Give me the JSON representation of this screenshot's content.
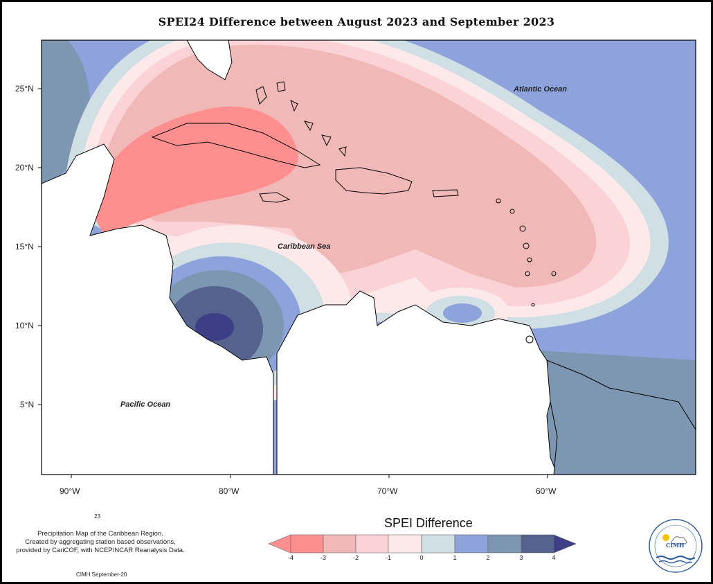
{
  "title": "SPEI24 Difference between August 2023 and September 2023",
  "labels": {
    "atlantic": "Atlantic Ocean",
    "caribbean": "Caribbean Sea",
    "pacific": "Pacific Ocean"
  },
  "lat_axis": [
    "25°N",
    "20°N",
    "15°N",
    "10°N",
    "5°N"
  ],
  "lon_axis": [
    "90°W",
    "80°W",
    "70°W",
    "60°W"
  ],
  "footnote_number": "23",
  "description_lines": [
    "Precipitation Map of the Caribbean Region.",
    "Created by aggregating station based observations,",
    "provided by CariCOF, with NCEP/NCAR Reanalysis Data."
  ],
  "credit": "CIMH September-20",
  "legend": {
    "title": "SPEI Difference",
    "ticks": [
      "-4",
      "-3",
      "-2",
      "-1",
      "0",
      "1",
      "2",
      "3",
      "4"
    ],
    "colors": [
      "#ff8f8f",
      "#f1b8b8",
      "#fbd2d6",
      "#fde9ea",
      "#cfdfe4",
      "#8ea2dc",
      "#7d96b1",
      "#55628d",
      "#3c3f86"
    ]
  },
  "logo_text": "CIMH"
}
